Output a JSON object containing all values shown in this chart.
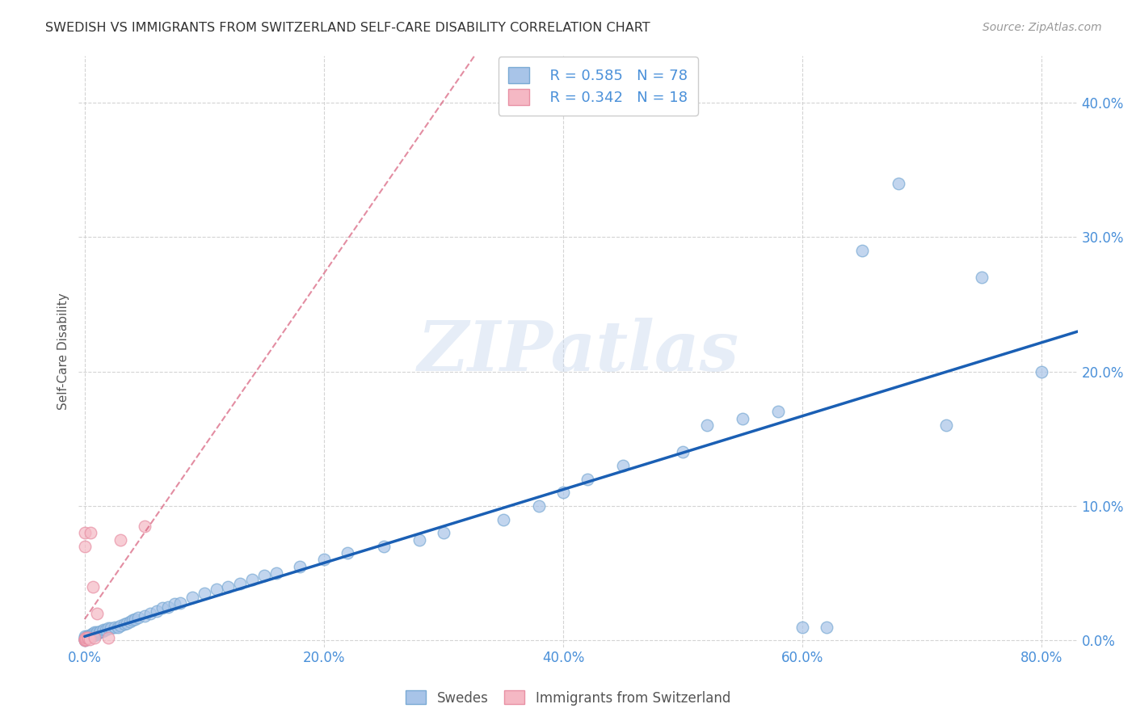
{
  "title": "SWEDISH VS IMMIGRANTS FROM SWITZERLAND SELF-CARE DISABILITY CORRELATION CHART",
  "source": "Source: ZipAtlas.com",
  "ylabel": "Self-Care Disability",
  "xlim": [
    -0.005,
    0.83
  ],
  "ylim": [
    -0.005,
    0.435
  ],
  "xticks": [
    0.0,
    0.2,
    0.4,
    0.6,
    0.8
  ],
  "yticks": [
    0.0,
    0.1,
    0.2,
    0.3,
    0.4
  ],
  "swedes_color": "#a8c4e8",
  "swedes_edge_color": "#7aaad4",
  "immigrants_color": "#f5b8c4",
  "immigrants_edge_color": "#e890a4",
  "trend_swedes_color": "#1a5fb4",
  "trend_immigrants_color": "#d45070",
  "background_color": "#ffffff",
  "grid_color": "#d0d0d0",
  "tick_color": "#4a90d9",
  "legend_R_swedes": "R = 0.585",
  "legend_N_swedes": "N = 78",
  "legend_R_immigrants": "R = 0.342",
  "legend_N_immigrants": "N = 18",
  "watermark": "ZIPatlas",
  "swedes_x": [
    0.0,
    0.0,
    0.0,
    0.0,
    0.0,
    0.0,
    0.001,
    0.001,
    0.002,
    0.002,
    0.003,
    0.003,
    0.004,
    0.004,
    0.005,
    0.005,
    0.006,
    0.006,
    0.007,
    0.007,
    0.008,
    0.008,
    0.009,
    0.01,
    0.01,
    0.012,
    0.013,
    0.015,
    0.016,
    0.018,
    0.02,
    0.022,
    0.025,
    0.028,
    0.03,
    0.033,
    0.035,
    0.038,
    0.04,
    0.042,
    0.045,
    0.05,
    0.055,
    0.06,
    0.065,
    0.07,
    0.075,
    0.08,
    0.09,
    0.1,
    0.11,
    0.12,
    0.13,
    0.14,
    0.15,
    0.16,
    0.18,
    0.2,
    0.22,
    0.25,
    0.28,
    0.3,
    0.35,
    0.38,
    0.4,
    0.42,
    0.45,
    0.5,
    0.52,
    0.55,
    0.58,
    0.6,
    0.62,
    0.65,
    0.68,
    0.72,
    0.75,
    0.8
  ],
  "swedes_y": [
    0.0,
    0.001,
    0.001,
    0.002,
    0.002,
    0.003,
    0.001,
    0.002,
    0.002,
    0.003,
    0.002,
    0.003,
    0.003,
    0.004,
    0.003,
    0.004,
    0.003,
    0.005,
    0.004,
    0.005,
    0.004,
    0.006,
    0.005,
    0.005,
    0.006,
    0.006,
    0.007,
    0.007,
    0.008,
    0.008,
    0.009,
    0.009,
    0.01,
    0.01,
    0.011,
    0.012,
    0.013,
    0.014,
    0.015,
    0.016,
    0.017,
    0.018,
    0.02,
    0.022,
    0.024,
    0.025,
    0.027,
    0.028,
    0.032,
    0.035,
    0.038,
    0.04,
    0.042,
    0.045,
    0.048,
    0.05,
    0.055,
    0.06,
    0.065,
    0.07,
    0.075,
    0.08,
    0.09,
    0.1,
    0.11,
    0.12,
    0.13,
    0.14,
    0.16,
    0.165,
    0.17,
    0.01,
    0.01,
    0.29,
    0.34,
    0.16,
    0.27,
    0.2
  ],
  "immigrants_x": [
    0.0,
    0.0,
    0.0,
    0.0,
    0.0,
    0.0,
    0.001,
    0.001,
    0.002,
    0.003,
    0.004,
    0.005,
    0.007,
    0.008,
    0.01,
    0.02,
    0.03,
    0.05
  ],
  "immigrants_y": [
    0.0,
    0.001,
    0.001,
    0.07,
    0.08,
    0.001,
    0.001,
    0.002,
    0.002,
    0.002,
    0.001,
    0.08,
    0.04,
    0.002,
    0.02,
    0.002,
    0.075,
    0.085
  ]
}
